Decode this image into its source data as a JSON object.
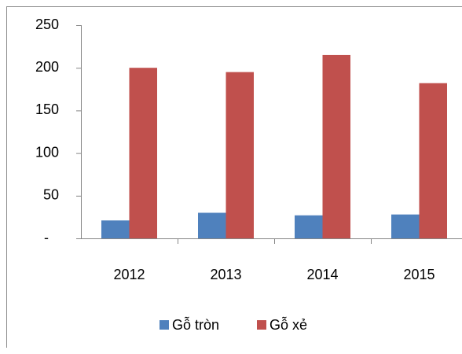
{
  "chart_data": {
    "type": "bar",
    "categories": [
      "2012",
      "2013",
      "2014",
      "2015"
    ],
    "series": [
      {
        "name": "Gỗ tròn",
        "color": "#4f81bd",
        "values": [
          21,
          30,
          27,
          28
        ]
      },
      {
        "name": "Gỗ xẻ",
        "color": "#c0504d",
        "values": [
          200,
          195,
          215,
          182
        ]
      }
    ],
    "ylim": [
      0,
      250
    ],
    "yticks": [
      {
        "value": 0,
        "label": "-"
      },
      50,
      100,
      150,
      200,
      250
    ],
    "grid": false,
    "legend": "bottom"
  }
}
